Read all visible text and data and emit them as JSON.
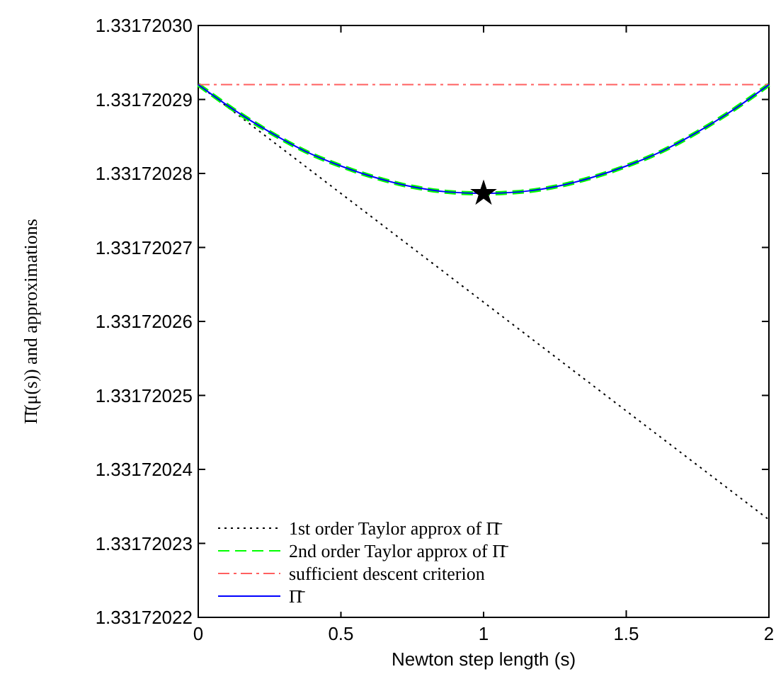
{
  "chart_data": {
    "type": "line",
    "xlabel": "Newton step length (s)",
    "ylabel": "Π̄(μ(s)) and approximations",
    "xlim": [
      0,
      2
    ],
    "xticks": [
      0,
      0.5,
      1,
      1.5,
      2
    ],
    "ylim": [
      1.33172022,
      1.3317203
    ],
    "yticks": [
      {
        "value": 1.33172022,
        "label": "1.33172022"
      },
      {
        "value": 1.33172023,
        "label": "1.33172023"
      },
      {
        "value": 1.33172024,
        "label": "1.33172024"
      },
      {
        "value": 1.33172025,
        "label": "1.33172025"
      },
      {
        "value": 1.33172026,
        "label": "1.33172026"
      },
      {
        "value": 1.33172027,
        "label": "1.33172027"
      },
      {
        "value": 1.33172028,
        "label": "1.33172028"
      },
      {
        "value": 1.33172029,
        "label": "1.33172029"
      },
      {
        "value": 1.3317203,
        "label": "1.33172030"
      }
    ],
    "grid": false,
    "legend": "bottom left",
    "series": [
      {
        "name": "1st order Taylor approx of Π̄",
        "color": "#000000",
        "line_style": "dotted",
        "marker": "none",
        "x": [
          0,
          2
        ],
        "values": [
          1.331720292,
          1.3317202332
        ]
      },
      {
        "name": "2nd order Taylor approx of Π̄",
        "color": "#00ff00",
        "line_style": "dashed",
        "marker": "none",
        "x": [
          0,
          0.125,
          0.25,
          0.375,
          0.5,
          0.625,
          0.75,
          0.875,
          1,
          1.125,
          1.25,
          1.375,
          1.5,
          1.625,
          1.75,
          1.875,
          2
        ],
        "values": [
          1.331720292,
          1.3317202886,
          1.3317202856,
          1.331720283,
          1.331720281,
          1.3317202794,
          1.3317202782,
          1.3317202775,
          1.3317202773,
          1.3317202775,
          1.3317202782,
          1.3317202794,
          1.331720281,
          1.331720283,
          1.3317202856,
          1.3317202886,
          1.331720292
        ]
      },
      {
        "name": "sufficient descent criterion",
        "color": "#ff6060",
        "line_style": "dashdot",
        "marker": "none",
        "x": [
          0,
          2
        ],
        "values": [
          1.331720292,
          1.331720292
        ]
      },
      {
        "name": "Π̄",
        "color": "#0000ff",
        "line_style": "solid",
        "marker": "none",
        "x": [
          0,
          0.125,
          0.25,
          0.375,
          0.5,
          0.625,
          0.75,
          0.875,
          1,
          1.125,
          1.25,
          1.375,
          1.5,
          1.625,
          1.75,
          1.875,
          2
        ],
        "values": [
          1.331720292,
          1.3317202886,
          1.3317202856,
          1.331720283,
          1.331720281,
          1.3317202794,
          1.3317202782,
          1.3317202775,
          1.3317202773,
          1.3317202775,
          1.3317202782,
          1.3317202794,
          1.331720281,
          1.331720283,
          1.3317202856,
          1.3317202886,
          1.331720292
        ]
      },
      {
        "type": "scatter",
        "color": "#000000",
        "marker": "star",
        "x": [
          1
        ],
        "values": [
          1.3317202773
        ]
      }
    ]
  }
}
